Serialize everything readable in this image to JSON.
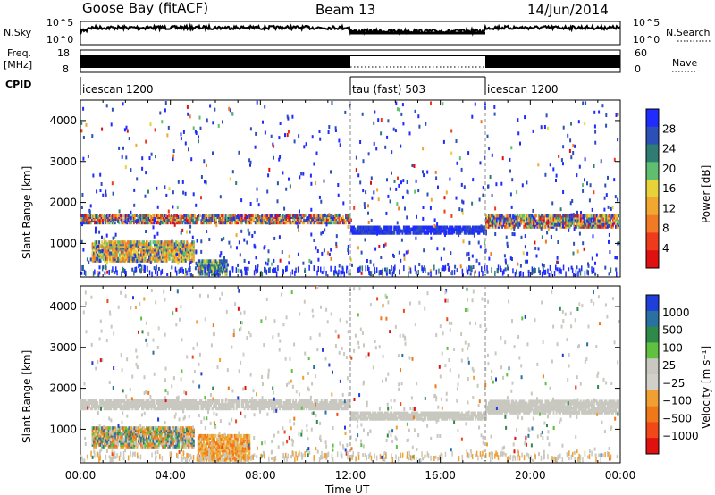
{
  "header": {
    "station": "Goose Bay (fitACF)",
    "beam": "Beam 13",
    "date": "14/Jun/2014"
  },
  "status_panels": {
    "nsky_label": "N.Sky",
    "nsearch_label": "N.Search",
    "freq_label_line1": "Freq.",
    "freq_label_line2": "[MHz]",
    "nave_label": "Nave",
    "cpid_label": "CPID",
    "left_scale_top": "10^5",
    "left_scale_bottom": "10^0",
    "right_scale_top": "10^5",
    "right_scale_bottom": "10^0",
    "freq_left_top": "18",
    "freq_left_bottom": "8",
    "nave_right_top": "60",
    "nave_right_bottom": "0",
    "cpid_modes": [
      {
        "label": "icescan 1200",
        "start_hour": 0,
        "end_hour": 12
      },
      {
        "label": "tau (fast) 503",
        "start_hour": 12,
        "end_hour": 18
      },
      {
        "label": "icescan 1200",
        "start_hour": 18,
        "end_hour": 24
      }
    ]
  },
  "chart_data": [
    {
      "type": "heatmap",
      "name": "power",
      "ylabel": "Slant Range [km]",
      "xlabel": "Time UT",
      "xlim_hours": [
        0,
        24
      ],
      "ylim": [
        180,
        4500
      ],
      "yticks": [
        "1000",
        "2000",
        "3000",
        "4000"
      ],
      "xticks": [
        "00:00",
        "04:00",
        "08:00",
        "12:00",
        "16:00",
        "20:00",
        "00:00"
      ],
      "colorbar": {
        "label": "Power [dB]",
        "ticks": [
          "4",
          "8",
          "12",
          "16",
          "20",
          "24",
          "28"
        ],
        "colors": [
          "#1f2bff",
          "#2d4fb8",
          "#2f7d72",
          "#5fbf6f",
          "#e8d23a",
          "#f0a830",
          "#f27a24",
          "#f03a1c",
          "#e01010"
        ]
      },
      "regions": [
        {
          "t0": 0.0,
          "t1": 12.0,
          "r0": 1550,
          "r1": 1760,
          "value": "mixed"
        },
        {
          "t0": 12.0,
          "t1": 18.0,
          "r0": 1300,
          "r1": 1460,
          "value": "low"
        },
        {
          "t0": 18.0,
          "t1": 24.0,
          "r0": 1450,
          "r1": 1750,
          "value": "mixed"
        },
        {
          "t0": 0.5,
          "t1": 5.0,
          "r0": 620,
          "r1": 1100,
          "value": "high"
        },
        {
          "t0": 5.2,
          "t1": 6.5,
          "r0": 250,
          "r1": 650,
          "value": "mid"
        }
      ]
    },
    {
      "type": "heatmap",
      "name": "velocity",
      "ylabel": "Slant Range [km]",
      "xlabel": "Time UT",
      "xlim_hours": [
        0,
        24
      ],
      "ylim": [
        180,
        4500
      ],
      "yticks": [
        "1000",
        "2000",
        "3000",
        "4000"
      ],
      "xticks": [
        "00:00",
        "04:00",
        "08:00",
        "12:00",
        "16:00",
        "20:00",
        "00:00"
      ],
      "colorbar": {
        "label": "Velocity [m s⁻¹]",
        "ticks": [
          "1000",
          "500",
          "100",
          "25",
          "−25",
          "−100",
          "−500",
          "−1000"
        ],
        "colors": [
          "#1f3fd8",
          "#2a70a0",
          "#2f8a4a",
          "#60c040",
          "#c8c8c0",
          "#d0d0c8",
          "#f0a030",
          "#f07818",
          "#f04818",
          "#e01010"
        ]
      },
      "regions": [
        {
          "t0": 0.0,
          "t1": 12.0,
          "r0": 1550,
          "r1": 1760,
          "value": "ground"
        },
        {
          "t0": 12.0,
          "t1": 18.0,
          "r0": 1300,
          "r1": 1460,
          "value": "ground"
        },
        {
          "t0": 18.0,
          "t1": 24.0,
          "r0": 1450,
          "r1": 1750,
          "value": "ground"
        },
        {
          "t0": 0.5,
          "t1": 5.0,
          "r0": 620,
          "r1": 1100,
          "value": "mixed"
        },
        {
          "t0": 5.2,
          "t1": 7.5,
          "r0": 250,
          "r1": 900,
          "value": "negative"
        }
      ]
    }
  ]
}
